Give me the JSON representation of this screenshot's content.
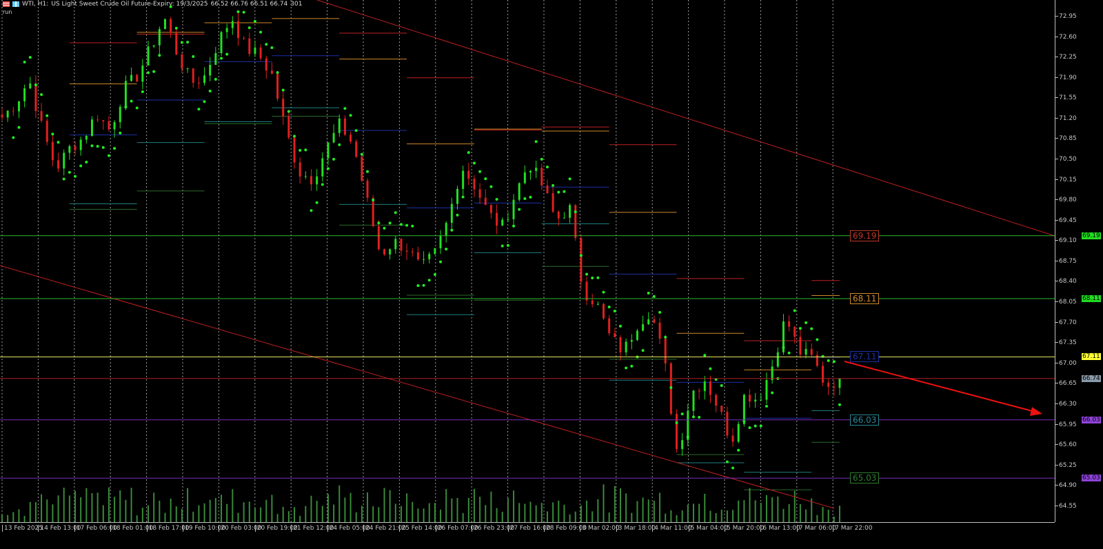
{
  "header": {
    "symbol": "WTI, H1:",
    "description": "US Light Sweet Crude Oil Future-Expiry: 19/3/2025",
    "ohlc": "66.52 66.76 66.51 66.74",
    "volume": "301",
    "sub_label": "run"
  },
  "chart_data": {
    "type": "candlestick",
    "title": "WTI, H1",
    "ylim": [
      64.4,
      73.2
    ],
    "y_ticks": [
      "72.95",
      "72.60",
      "72.25",
      "71.90",
      "71.55",
      "71.20",
      "70.85",
      "70.50",
      "70.15",
      "69.80",
      "69.45",
      "69.10",
      "68.75",
      "68.40",
      "68.05",
      "67.70",
      "67.35",
      "67.00",
      "66.65",
      "66.30",
      "65.95",
      "65.60",
      "65.25",
      "64.90",
      "64.55"
    ],
    "x_ticks": [
      "13 Feb 2025",
      "14 Feb 13:00",
      "17 Feb 06:00",
      "18 Feb 01:00",
      "18 Feb 17:00",
      "19 Feb 10:00",
      "20 Feb 03:00",
      "20 Feb 19:00",
      "21 Feb 12:00",
      "24 Feb 05:00",
      "24 Feb 21:00",
      "25 Feb 14:00",
      "26 Feb 07:00",
      "26 Feb 23:00",
      "27 Feb 16:00",
      "28 Feb 09:00",
      "3 Mar 02:00",
      "3 Mar 18:00",
      "4 Mar 11:00",
      "5 Mar 04:00",
      "5 Mar 20:00",
      "6 Mar 13:00",
      "7 Mar 06:00",
      "7 Mar 22:00"
    ],
    "approx_close_path": [
      71.22,
      71.46,
      71.87,
      70.99,
      70.34,
      70.69,
      70.87,
      71.28,
      70.99,
      71.7,
      71.93,
      72.41,
      72.94,
      72.29,
      71.81,
      71.93,
      72.52,
      72.94,
      72.41,
      72.29,
      71.93,
      70.99,
      70.28,
      70.16,
      70.69,
      71.1,
      70.75,
      69.8,
      68.86,
      69.09,
      68.97,
      68.62,
      68.86,
      69.45,
      70.39,
      70.04,
      69.57,
      69.33,
      69.92,
      70.45,
      70.04,
      69.45,
      69.68,
      68.26,
      68.03,
      67.44,
      67.2,
      67.67,
      67.91,
      67.08,
      65.42,
      66.49,
      66.73,
      66.25,
      65.66,
      66.49,
      66.37,
      66.96,
      67.79,
      67.2,
      67.08,
      66.61,
      66.74
    ],
    "last_price": 66.74,
    "levels": [
      {
        "value": "69.19",
        "line_color": "#2db82d",
        "tag_color": "#22dd22",
        "label_color": "#c0392b"
      },
      {
        "value": "68.11",
        "line_color": "#2db82d",
        "tag_color": "#22dd22",
        "label_color": "#d08a2a"
      },
      {
        "value": "67.11",
        "line_color": "#e6e65a",
        "tag_color": "#ffff33",
        "label_color": "#1f2fa8"
      },
      {
        "value": "66.74",
        "line_color": "#b02020",
        "tag_color": "#8a9aa8",
        "label_color": ""
      },
      {
        "value": "66.03",
        "line_color": "#7b2fbf",
        "tag_color": "#8e44d8",
        "label_color": "#2a8a9a"
      },
      {
        "value": "65.03",
        "line_color": "#7b2fbf",
        "tag_color": "#8e44d8",
        "label_color": "#2f7f2f"
      }
    ],
    "colors": {
      "bull": "#22e022",
      "bear": "#e02020",
      "sar": "#22ee22",
      "channel": "#c02020",
      "volume": "#3a8a3a",
      "grid": "#c8c8c8",
      "arrow": "#ee1111"
    },
    "grid": true,
    "indicators": [
      "Parabolic SAR",
      "Pivot levels",
      "Volume",
      "Descending channel"
    ]
  }
}
